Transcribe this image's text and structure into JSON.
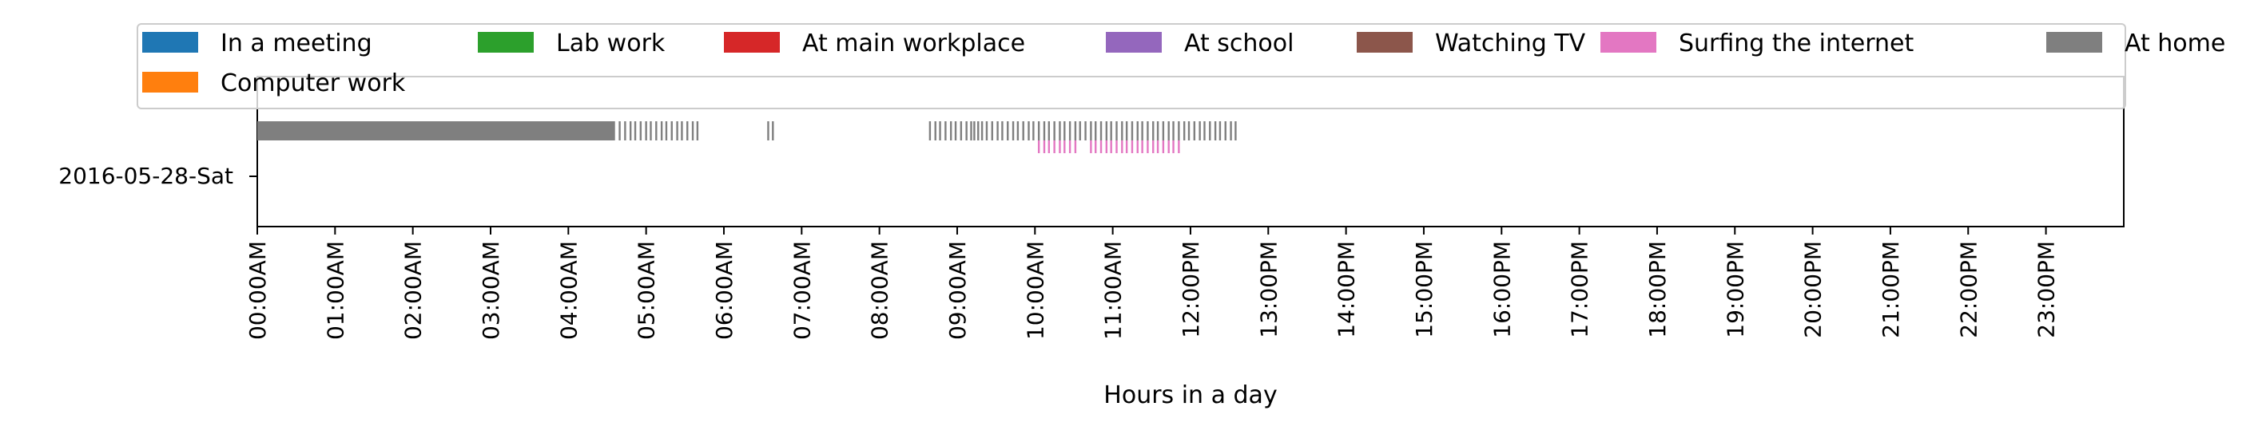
{
  "chart_data": {
    "type": "timeline",
    "date_label": "2016-05-28-Sat",
    "xlabel": "Hours in a day",
    "xlim": [
      0,
      24
    ],
    "x_tick_labels": [
      "00:00AM",
      "01:00AM",
      "02:00AM",
      "03:00AM",
      "04:00AM",
      "05:00AM",
      "06:00AM",
      "07:00AM",
      "08:00AM",
      "09:00AM",
      "10:00AM",
      "11:00AM",
      "12:00PM",
      "13:00PM",
      "14:00PM",
      "15:00PM",
      "16:00PM",
      "17:00PM",
      "18:00PM",
      "19:00PM",
      "20:00PM",
      "21:00PM",
      "22:00PM",
      "23:00PM"
    ],
    "legend": {
      "placement": "top",
      "entries": [
        {
          "label": "In a meeting",
          "color": "#1f77b4"
        },
        {
          "label": "Lab work",
          "color": "#2ca02c"
        },
        {
          "label": "At main workplace",
          "color": "#d62728"
        },
        {
          "label": "At school",
          "color": "#9467bd"
        },
        {
          "label": "Watching TV",
          "color": "#8c564b"
        },
        {
          "label": "Surfing the internet",
          "color": "#e377c2"
        },
        {
          "label": "At home",
          "color": "#7f7f7f"
        },
        {
          "label": "Computer work",
          "color": "#ff7f0e"
        }
      ]
    },
    "series": [
      {
        "name": "At home",
        "color": "#7f7f7f",
        "lane": "upper",
        "intervals": [
          [
            0.0,
            4.6
          ]
        ],
        "ticks": [
          4.66,
          4.73,
          4.8,
          4.86,
          4.93,
          5.0,
          5.06,
          5.13,
          5.2,
          5.26,
          5.33,
          5.4,
          5.46,
          5.53,
          5.6,
          5.66,
          6.57,
          6.63,
          8.65,
          8.72,
          8.78,
          8.85,
          8.92,
          8.98,
          9.05,
          9.12,
          9.18,
          9.22,
          9.27,
          9.32,
          9.38,
          9.45,
          9.52,
          9.58,
          9.65,
          9.72,
          9.78,
          9.85,
          9.92,
          9.98,
          10.05,
          10.12,
          10.18,
          10.25,
          10.32,
          10.38,
          10.45,
          10.52,
          10.58,
          10.65,
          10.72,
          10.78,
          10.85,
          10.92,
          10.98,
          11.05,
          11.12,
          11.18,
          11.25,
          11.32,
          11.38,
          11.45,
          11.52,
          11.58,
          11.65,
          11.72,
          11.78,
          11.85,
          11.92,
          11.98,
          12.05,
          12.12,
          12.18,
          12.25,
          12.32,
          12.38,
          12.45,
          12.52,
          12.58
        ]
      },
      {
        "name": "Surfing the internet",
        "color": "#e377c2",
        "lane": "lower",
        "intervals": [],
        "ticks": [
          10.05,
          10.12,
          10.18,
          10.25,
          10.32,
          10.38,
          10.45,
          10.52,
          10.72,
          10.78,
          10.85,
          10.92,
          10.98,
          11.05,
          11.12,
          11.18,
          11.25,
          11.32,
          11.38,
          11.45,
          11.52,
          11.58,
          11.65,
          11.72,
          11.78,
          11.85
        ]
      }
    ]
  }
}
